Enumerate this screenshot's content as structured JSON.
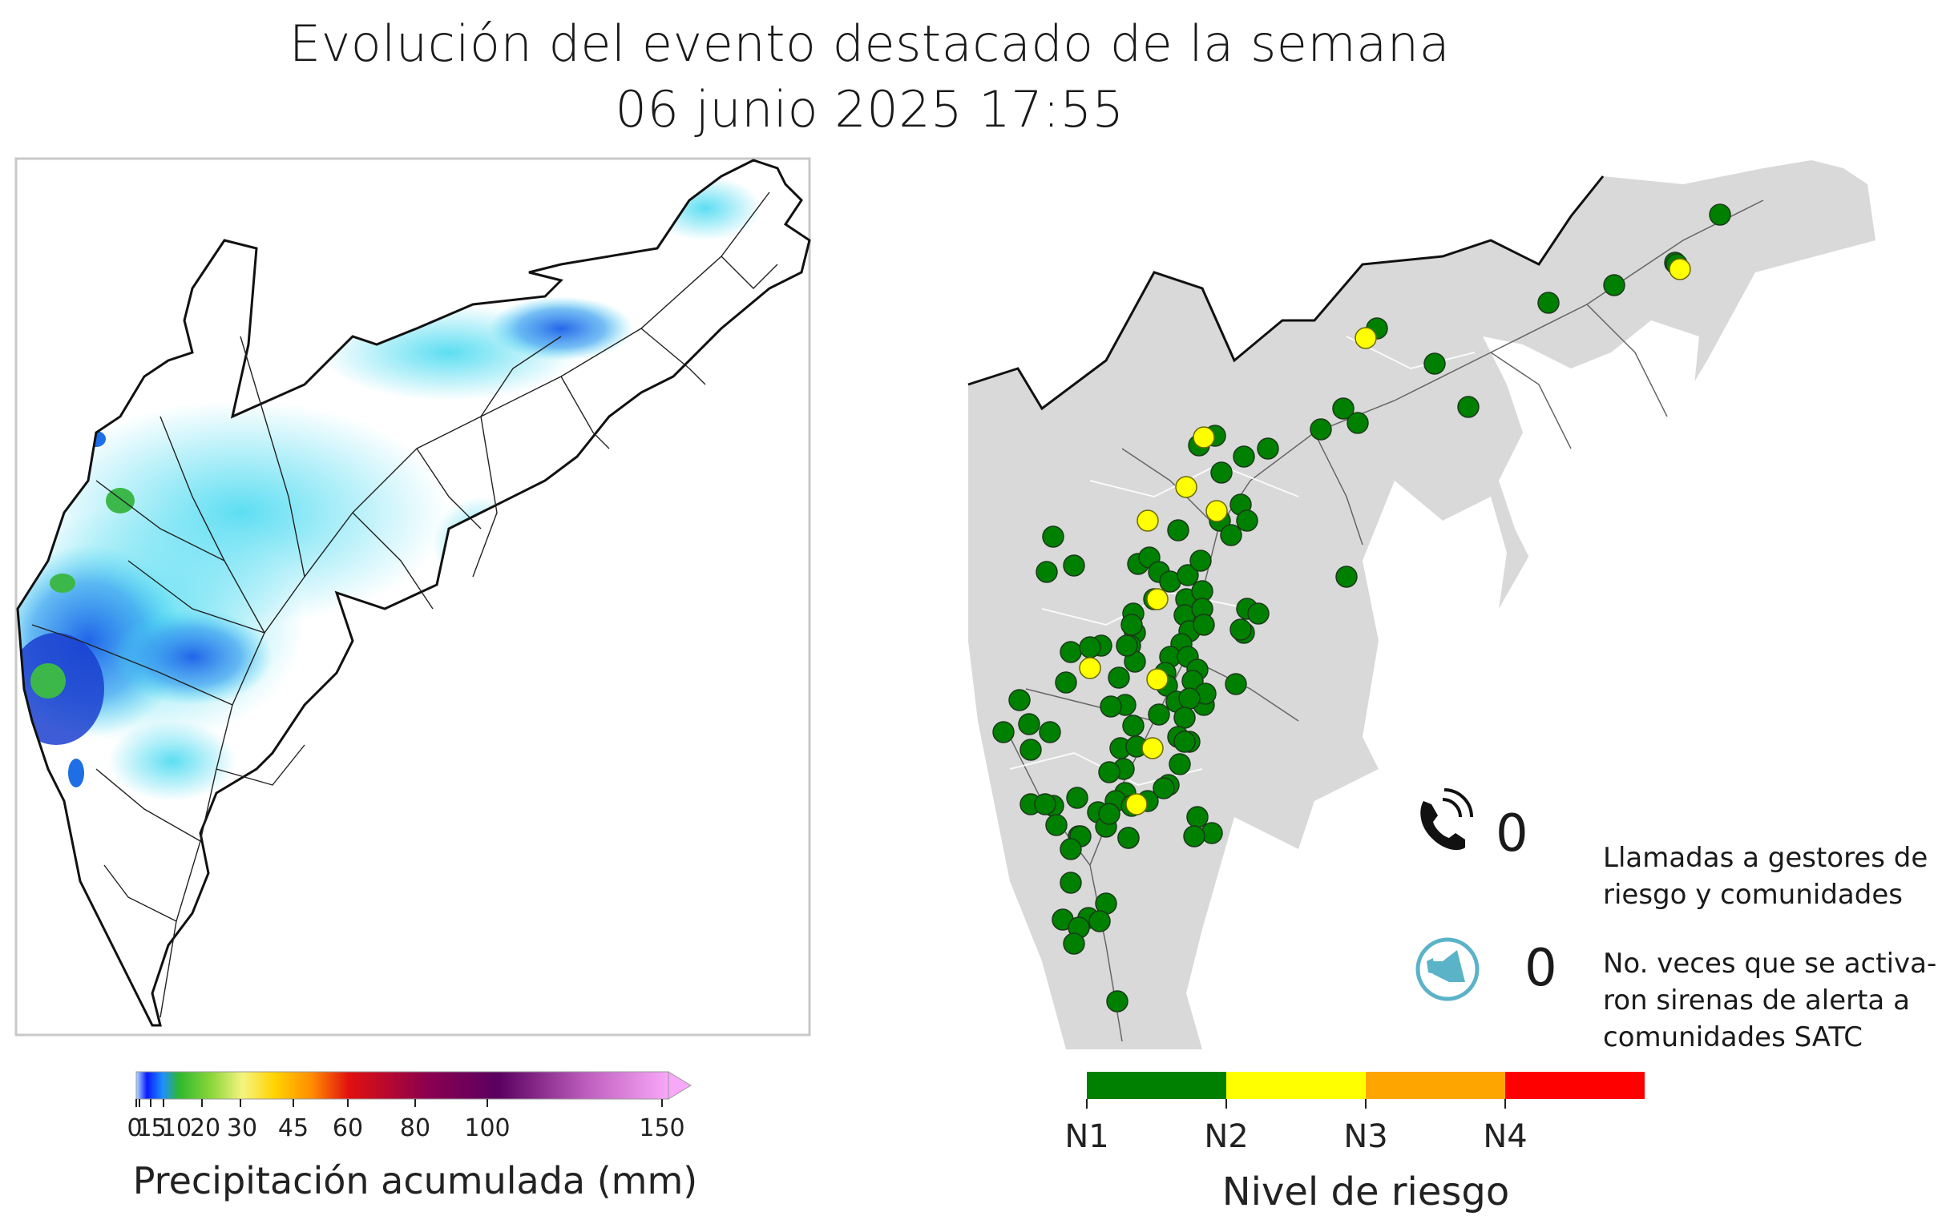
{
  "header": {
    "title_line1": "Evolución del evento destacado de la semana",
    "title_line2": "06 junio 2025 17:55"
  },
  "precip_legend": {
    "title": "Precipitación acumulada (mm)",
    "ticks": [
      "0",
      "1",
      "5",
      "10",
      "20",
      "30",
      "45",
      "60",
      "80",
      "100",
      "150"
    ],
    "colors": [
      "#0a1aff",
      "#1e90ff",
      "#2ee2e2",
      "#2eb82e",
      "#8ad63a",
      "#e8e830",
      "#ffd400",
      "#ff8c00",
      "#e01010",
      "#b00040",
      "#6a006a",
      "#c060c0",
      "#f4a0f4"
    ]
  },
  "risk_legend": {
    "title": "Nivel de riesgo",
    "levels": [
      {
        "label": "N1",
        "color": "#008000"
      },
      {
        "label": "N2",
        "color": "#ffff00"
      },
      {
        "label": "N3",
        "color": "#ffa500"
      },
      {
        "label": "N4",
        "color": "#ff0000"
      }
    ]
  },
  "stats": {
    "calls": {
      "value": "0",
      "line1": "Llamadas a gestores de",
      "line2": "riesgo y comunidades",
      "icon": "phone-icon"
    },
    "sirens": {
      "value": "0",
      "line1": "No. veces que se activa-",
      "line2": "ron sirenas de alerta a",
      "line3": "comunidades SATC",
      "icon": "siren-icon"
    }
  },
  "colors": {
    "basin_fill": "#d9d9d9",
    "low_precip": "#40d8f0",
    "mid_precip": "#1e6ee6",
    "point_green": "#008000",
    "point_yellow": "#ffff00"
  }
}
